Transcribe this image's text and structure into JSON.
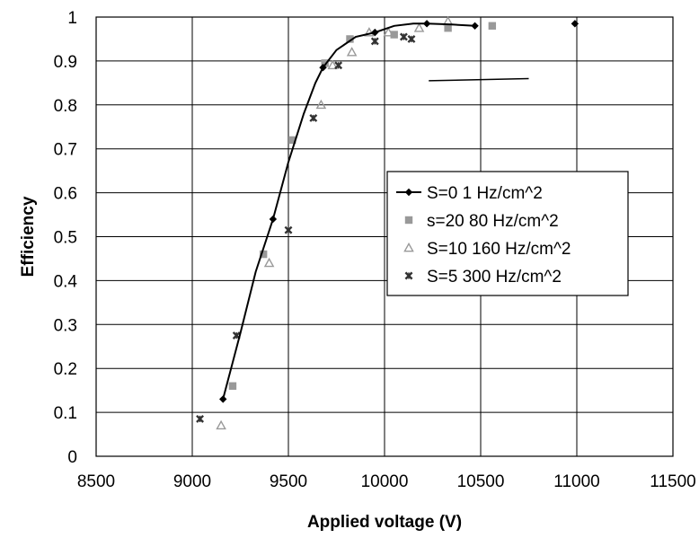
{
  "chart_data": {
    "type": "scatter",
    "xlabel": "Applied voltage (V)",
    "ylabel": "Efficiency",
    "xlim": [
      8500,
      11500
    ],
    "ylim": [
      0,
      1
    ],
    "x_ticks": [
      "8500",
      "9000",
      "9500",
      "10000",
      "10500",
      "11000",
      "11500"
    ],
    "y_ticks": [
      "0",
      "0.1",
      "0.2",
      "0.3",
      "0.4",
      "0.5",
      "0.6",
      "0.7",
      "0.8",
      "0.9",
      "1"
    ],
    "grid": true,
    "legend_position": "center-right",
    "series": [
      {
        "name": "S=0 1 Hz/cm^2",
        "marker": "diamond",
        "color": "#000000",
        "line": true,
        "points": [
          [
            9160,
            0.13
          ],
          [
            9420,
            0.54
          ],
          [
            9680,
            0.885
          ],
          [
            9950,
            0.965
          ],
          [
            10220,
            0.985
          ],
          [
            10470,
            0.98
          ],
          [
            10990,
            0.985
          ]
        ],
        "curve": [
          [
            9160,
            0.13
          ],
          [
            9250,
            0.28
          ],
          [
            9330,
            0.42
          ],
          [
            9420,
            0.54
          ],
          [
            9500,
            0.67
          ],
          [
            9580,
            0.78
          ],
          [
            9640,
            0.85
          ],
          [
            9680,
            0.885
          ],
          [
            9750,
            0.925
          ],
          [
            9850,
            0.955
          ],
          [
            9950,
            0.965
          ],
          [
            10050,
            0.98
          ],
          [
            10150,
            0.985
          ],
          [
            10220,
            0.985
          ],
          [
            10350,
            0.983
          ],
          [
            10470,
            0.98
          ]
        ]
      },
      {
        "name": "s=20 80 Hz/cm^2",
        "marker": "square",
        "color": "#999999",
        "line": false,
        "points": [
          [
            9210,
            0.16
          ],
          [
            9370,
            0.46
          ],
          [
            9520,
            0.72
          ],
          [
            9690,
            0.895
          ],
          [
            9820,
            0.95
          ],
          [
            10050,
            0.96
          ],
          [
            10330,
            0.975
          ],
          [
            10560,
            0.98
          ]
        ]
      },
      {
        "name": "S=10 160 Hz/cm^2",
        "marker": "triangle",
        "color": "#999999",
        "line": false,
        "points": [
          [
            9150,
            0.07
          ],
          [
            9400,
            0.44
          ],
          [
            9670,
            0.8
          ],
          [
            9730,
            0.89
          ],
          [
            9830,
            0.92
          ],
          [
            9920,
            0.965
          ],
          [
            10020,
            0.965
          ],
          [
            10180,
            0.975
          ],
          [
            10330,
            0.99
          ]
        ]
      },
      {
        "name": "S=5 300 Hz/cm^2",
        "marker": "x",
        "color": "#333333",
        "line": false,
        "points": [
          [
            9040,
            0.085
          ],
          [
            9230,
            0.275
          ],
          [
            9500,
            0.515
          ],
          [
            9630,
            0.77
          ],
          [
            9760,
            0.89
          ],
          [
            9950,
            0.945
          ],
          [
            10100,
            0.955
          ],
          [
            10140,
            0.95
          ]
        ]
      }
    ],
    "annotations": [
      {
        "type": "line",
        "x": [
          10230,
          10750
        ],
        "y": [
          0.855,
          0.86
        ]
      }
    ]
  }
}
